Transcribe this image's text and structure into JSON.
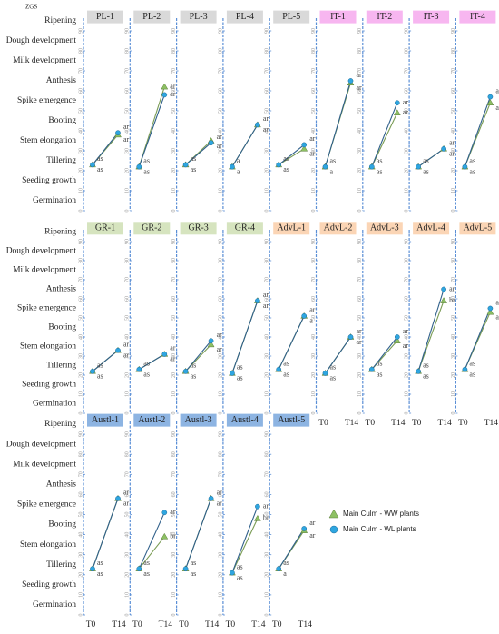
{
  "chart_data": {
    "type": "line",
    "y_label": "ZGS",
    "categories": [
      "T0",
      "T14"
    ],
    "ylim": [
      0,
      100
    ],
    "yticks": [
      0,
      10,
      20,
      30,
      40,
      50,
      60,
      70,
      80,
      90
    ],
    "stage_ticks": [
      {
        "value": 95,
        "label": "Ripening"
      },
      {
        "value": 85,
        "label": "Dough development"
      },
      {
        "value": 75,
        "label": "Milk development"
      },
      {
        "value": 65,
        "label": "Anthesis"
      },
      {
        "value": 55,
        "label": "Spike emergence"
      },
      {
        "value": 45,
        "label": "Booting"
      },
      {
        "value": 35,
        "label": "Stem elongation"
      },
      {
        "value": 25,
        "label": "Tillering"
      },
      {
        "value": 15,
        "label": "Seeding growth"
      },
      {
        "value": 5,
        "label": "Germination"
      }
    ],
    "series": [
      {
        "name": "Main Culm - WW plants",
        "color": "#8dc063",
        "marker": "triangle"
      },
      {
        "name": "Main Culm - WL plants",
        "color": "#2ea6e0",
        "marker": "circle"
      }
    ],
    "panels": [
      {
        "name": "PL-1",
        "label_color": "#d9d9d9",
        "series": [
          {
            "values": [
              23,
              38
            ],
            "annotations": [
              "as",
              "ar"
            ]
          },
          {
            "values": [
              23,
              39
            ],
            "annotations": [
              "as",
              "ar"
            ]
          }
        ]
      },
      {
        "name": "PL-2",
        "label_color": "#d9d9d9",
        "series": [
          {
            "values": [
              22,
              62
            ],
            "annotations": [
              "as",
              "ar"
            ]
          },
          {
            "values": [
              22,
              58
            ],
            "annotations": [
              "as",
              "ar"
            ]
          }
        ]
      },
      {
        "name": "PL-3",
        "label_color": "#d9d9d9",
        "series": [
          {
            "values": [
              23,
              35
            ],
            "annotations": [
              "as",
              "ar"
            ]
          },
          {
            "values": [
              23,
              34
            ],
            "annotations": [
              "as",
              "ar"
            ]
          }
        ]
      },
      {
        "name": "PL-4",
        "label_color": "#d9d9d9",
        "series": [
          {
            "values": [
              22,
              43
            ],
            "annotations": [
              "a",
              "ar"
            ]
          },
          {
            "values": [
              22,
              43
            ],
            "annotations": [
              "a",
              "ar"
            ]
          }
        ]
      },
      {
        "name": "PL-5",
        "label_color": "#d9d9d9",
        "series": [
          {
            "values": [
              23,
              31
            ],
            "annotations": [
              "as",
              "ar"
            ]
          },
          {
            "values": [
              23,
              33
            ],
            "annotations": [
              "as",
              "ar"
            ]
          }
        ]
      },
      {
        "name": "IT-1",
        "label_color": "#f7b6f0",
        "series": [
          {
            "values": [
              22,
              64
            ],
            "annotations": [
              "a",
              "ar"
            ]
          },
          {
            "values": [
              22,
              65
            ],
            "annotations": [
              "as",
              "ar"
            ]
          }
        ]
      },
      {
        "name": "IT-2",
        "label_color": "#f7b6f0",
        "series": [
          {
            "values": [
              22,
              49
            ],
            "annotations": [
              "as",
              "ar"
            ]
          },
          {
            "values": [
              22,
              54
            ],
            "annotations": [
              "as",
              "ar"
            ]
          }
        ]
      },
      {
        "name": "IT-3",
        "label_color": "#f7b6f0",
        "series": [
          {
            "values": [
              22,
              31
            ],
            "annotations": [
              "as",
              "ar"
            ]
          },
          {
            "values": [
              22,
              31
            ],
            "annotations": [
              "as",
              "ar"
            ]
          }
        ]
      },
      {
        "name": "IT-4",
        "label_color": "#f7b6f0",
        "series": [
          {
            "values": [
              22,
              54
            ],
            "annotations": [
              "as",
              "ar"
            ]
          },
          {
            "values": [
              22,
              57
            ],
            "annotations": [
              "as",
              "ar"
            ]
          }
        ]
      },
      {
        "name": "GR-1",
        "label_color": "#d6e4bf",
        "series": [
          {
            "values": [
              22,
              33
            ],
            "annotations": [
              "as",
              "ar"
            ]
          },
          {
            "values": [
              22,
              33
            ],
            "annotations": [
              "as",
              "ar"
            ]
          }
        ]
      },
      {
        "name": "GR-2",
        "label_color": "#d6e4bf",
        "series": [
          {
            "values": [
              23,
              31
            ],
            "annotations": [
              "as",
              "ar"
            ]
          },
          {
            "values": [
              23,
              31
            ],
            "annotations": [
              "as",
              "ar"
            ]
          }
        ]
      },
      {
        "name": "GR-3",
        "label_color": "#d6e4bf",
        "series": [
          {
            "values": [
              22,
              36
            ],
            "annotations": [
              "as",
              "ar"
            ]
          },
          {
            "values": [
              22,
              38
            ],
            "annotations": [
              "as",
              "ar"
            ]
          }
        ]
      },
      {
        "name": "GR-4",
        "label_color": "#d6e4bf",
        "series": [
          {
            "values": [
              21,
              59
            ],
            "annotations": [
              "as",
              "ar"
            ]
          },
          {
            "values": [
              21,
              59
            ],
            "annotations": [
              "as",
              "ar"
            ]
          }
        ]
      },
      {
        "name": "AdvL-1",
        "label_color": "#fbd5b5",
        "series": [
          {
            "values": [
              23,
              51
            ],
            "annotations": [
              "as",
              "a"
            ]
          },
          {
            "values": [
              23,
              51
            ],
            "annotations": [
              "as",
              "ar"
            ]
          }
        ]
      },
      {
        "name": "AdvL-2",
        "label_color": "#fbd5b5",
        "series": [
          {
            "values": [
              21,
              40
            ],
            "annotations": [
              "as",
              "ar"
            ]
          },
          {
            "values": [
              21,
              40
            ],
            "annotations": [
              "as",
              "ar"
            ]
          }
        ]
      },
      {
        "name": "AdvL-3",
        "label_color": "#fbd5b5",
        "series": [
          {
            "values": [
              23,
              38
            ],
            "annotations": [
              "as",
              "ar"
            ]
          },
          {
            "values": [
              23,
              40
            ],
            "annotations": [
              "as",
              "ar"
            ]
          }
        ]
      },
      {
        "name": "AdvL-4",
        "label_color": "#fbd5b5",
        "series": [
          {
            "values": [
              22,
              59
            ],
            "annotations": [
              "as",
              "br"
            ]
          },
          {
            "values": [
              22,
              65
            ],
            "annotations": [
              "as",
              "ar"
            ]
          }
        ]
      },
      {
        "name": "AdvL-5",
        "label_color": "#fbd5b5",
        "series": [
          {
            "values": [
              23,
              53
            ],
            "annotations": [
              "as",
              "ar"
            ]
          },
          {
            "values": [
              23,
              55
            ],
            "annotations": [
              "as",
              "ar"
            ]
          }
        ]
      },
      {
        "name": "Austl-1",
        "label_color": "#8db4e2",
        "series": [
          {
            "values": [
              23,
              58
            ],
            "annotations": [
              "as",
              "ar"
            ]
          },
          {
            "values": [
              23,
              58
            ],
            "annotations": [
              "as",
              "ar"
            ]
          }
        ]
      },
      {
        "name": "Austl-2",
        "label_color": "#8db4e2",
        "series": [
          {
            "values": [
              23,
              39
            ],
            "annotations": [
              "as",
              "br"
            ]
          },
          {
            "values": [
              23,
              51
            ],
            "annotations": [
              "as",
              "ar"
            ]
          }
        ]
      },
      {
        "name": "Austl-3",
        "label_color": "#8db4e2",
        "series": [
          {
            "values": [
              23,
              58
            ],
            "annotations": [
              "as",
              "ar"
            ]
          },
          {
            "values": [
              23,
              58
            ],
            "annotations": [
              "as",
              "ar"
            ]
          }
        ]
      },
      {
        "name": "Austl-4",
        "label_color": "#8db4e2",
        "series": [
          {
            "values": [
              21,
              48
            ],
            "annotations": [
              "as",
              "br"
            ]
          },
          {
            "values": [
              21,
              54
            ],
            "annotations": [
              "as",
              "ar"
            ]
          }
        ]
      },
      {
        "name": "Austl-5",
        "label_color": "#8db4e2",
        "series": [
          {
            "values": [
              23,
              42
            ],
            "annotations": [
              "a",
              "ar"
            ]
          },
          {
            "values": [
              23,
              43
            ],
            "annotations": [
              "as",
              "ar"
            ]
          }
        ]
      }
    ]
  }
}
